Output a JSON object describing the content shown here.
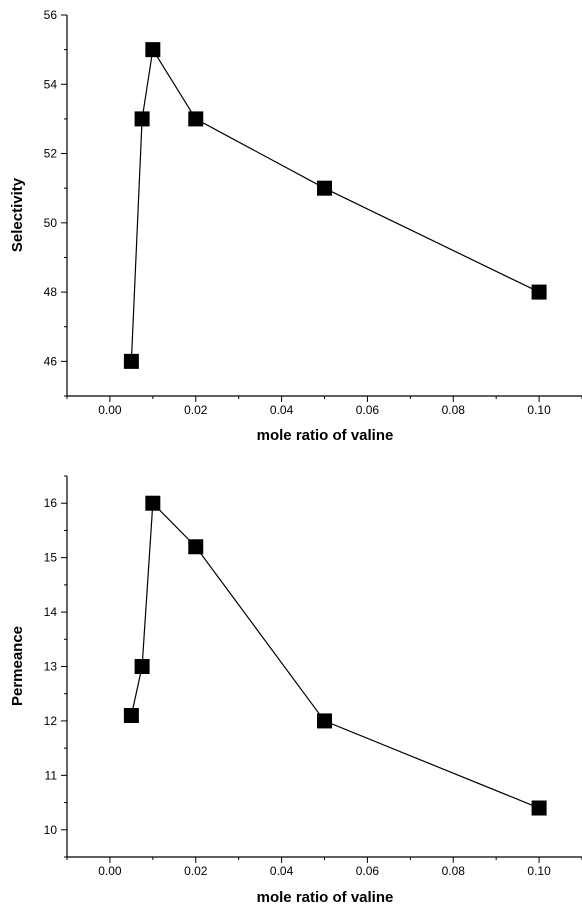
{
  "chart_data": [
    {
      "type": "line",
      "xlabel": "mole ratio of valine",
      "ylabel": "Selectivity",
      "xlim": [
        -0.01,
        0.11
      ],
      "ylim": [
        45,
        56
      ],
      "xticks": [
        0.0,
        0.02,
        0.04,
        0.06,
        0.08,
        0.1
      ],
      "xtick_labels": [
        "0.00",
        "0.02",
        "0.04",
        "0.06",
        "0.08",
        "0.10"
      ],
      "yticks": [
        46,
        48,
        50,
        52,
        54,
        56
      ],
      "ytick_labels": [
        "46",
        "48",
        "50",
        "52",
        "54",
        "56"
      ],
      "marker": "square",
      "grid": false,
      "series": [
        {
          "x": [
            0.005,
            0.0075,
            0.01,
            0.02,
            0.05,
            0.1
          ],
          "y": [
            46,
            53,
            55,
            53,
            51,
            48
          ]
        }
      ]
    },
    {
      "type": "line",
      "xlabel": "mole ratio of valine",
      "ylabel": "Permeance",
      "xlim": [
        -0.01,
        0.11
      ],
      "ylim": [
        9.5,
        16.5
      ],
      "xticks": [
        0.0,
        0.02,
        0.04,
        0.06,
        0.08,
        0.1
      ],
      "xtick_labels": [
        "0.00",
        "0.02",
        "0.04",
        "0.06",
        "0.08",
        "0.10"
      ],
      "yticks": [
        10,
        11,
        12,
        13,
        14,
        15,
        16
      ],
      "ytick_labels": [
        "10",
        "11",
        "12",
        "13",
        "14",
        "15",
        "16"
      ],
      "marker": "square",
      "grid": false,
      "series": [
        {
          "x": [
            0.005,
            0.0075,
            0.01,
            0.02,
            0.05,
            0.1
          ],
          "y": [
            12.1,
            13,
            16,
            15.2,
            12,
            10.4
          ]
        }
      ]
    }
  ]
}
